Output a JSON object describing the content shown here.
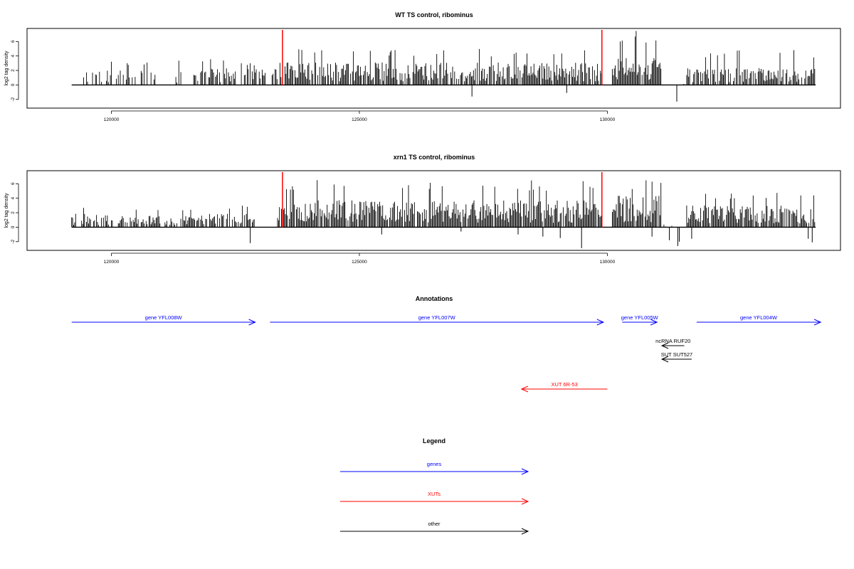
{
  "chart_data": [
    {
      "type": "bar",
      "title": "WT TS control, ribominus",
      "xlabel": "",
      "ylabel": "log2 tag density",
      "xlim": [
        118300,
        134700
      ],
      "ylim": [
        -3.2,
        7.8
      ],
      "x_ticks": [
        120000,
        125000,
        130000
      ],
      "x_tick_labels": [
        "120000",
        "125000",
        "130000"
      ],
      "y_ticks": [
        -2,
        0,
        2,
        4,
        6
      ],
      "y_tick_labels": [
        "-2",
        "0",
        "2",
        "4",
        "6"
      ],
      "baseline": {
        "x_start": 119200,
        "x_end": 134200,
        "y": 0
      },
      "markers": [
        {
          "x": 123450,
          "color": "#ff0000"
        },
        {
          "x": 129890,
          "color": "#ff0000"
        }
      ],
      "profile": {
        "bin_width": 20,
        "regions": [
          {
            "from": 119200,
            "to": 119400,
            "mean": 0.3,
            "max": 0.8,
            "density": 0.1
          },
          {
            "from": 119400,
            "to": 122000,
            "mean": 1.3,
            "max": 3.4,
            "density": 0.35
          },
          {
            "from": 122000,
            "to": 123400,
            "mean": 1.5,
            "max": 3.6,
            "density": 0.45
          },
          {
            "from": 123400,
            "to": 129900,
            "mean": 2.0,
            "max": 5.2,
            "density": 0.8
          },
          {
            "from": 129900,
            "to": 130100,
            "mean": 0.2,
            "max": 0.5,
            "density": 0.05
          },
          {
            "from": 130100,
            "to": 131100,
            "mean": 2.4,
            "max": 7.5,
            "density": 0.95
          },
          {
            "from": 131100,
            "to": 131600,
            "mean": 0.1,
            "max": 0.3,
            "density": 0.03
          },
          {
            "from": 131600,
            "to": 134200,
            "mean": 1.5,
            "max": 5.0,
            "density": 0.7
          }
        ],
        "negative_spikes": [
          {
            "x": 127270,
            "y": -1.6
          },
          {
            "x": 129180,
            "y": -1.1
          },
          {
            "x": 131400,
            "y": -2.3
          }
        ]
      }
    },
    {
      "type": "bar",
      "title": "xrn1 TS control, ribominus",
      "xlabel": "",
      "ylabel": "log2 tag density",
      "xlim": [
        118300,
        134700
      ],
      "ylim": [
        -3.2,
        7.8
      ],
      "x_ticks": [
        120000,
        125000,
        130000
      ],
      "x_tick_labels": [
        "120000",
        "125000",
        "130000"
      ],
      "y_ticks": [
        -2,
        0,
        2,
        4,
        6
      ],
      "y_tick_labels": [
        "-2",
        "0",
        "2",
        "4",
        "6"
      ],
      "baseline": {
        "x_start": 119200,
        "x_end": 134200,
        "y": 0
      },
      "markers": [
        {
          "x": 123450,
          "color": "#ff0000"
        },
        {
          "x": 129890,
          "color": "#ff0000"
        }
      ],
      "profile": {
        "bin_width": 20,
        "regions": [
          {
            "from": 119200,
            "to": 122900,
            "mean": 1.2,
            "max": 3.0,
            "density": 0.55
          },
          {
            "from": 122900,
            "to": 123350,
            "mean": 0.1,
            "max": 0.3,
            "density": 0.05
          },
          {
            "from": 123350,
            "to": 129900,
            "mean": 2.4,
            "max": 6.5,
            "density": 0.92
          },
          {
            "from": 129900,
            "to": 130100,
            "mean": 0.2,
            "max": 0.5,
            "density": 0.05
          },
          {
            "from": 130100,
            "to": 131100,
            "mean": 2.8,
            "max": 7.0,
            "density": 0.95
          },
          {
            "from": 131100,
            "to": 131600,
            "mean": 0.3,
            "max": 0.8,
            "density": 0.1
          },
          {
            "from": 131600,
            "to": 134200,
            "mean": 2.0,
            "max": 5.0,
            "density": 0.85
          }
        ],
        "negative_spikes": [
          {
            "x": 122800,
            "y": -2.2
          },
          {
            "x": 125450,
            "y": -1.0
          },
          {
            "x": 127050,
            "y": -0.6
          },
          {
            "x": 128200,
            "y": -1.0
          },
          {
            "x": 128700,
            "y": -1.3
          },
          {
            "x": 129050,
            "y": -1.5
          },
          {
            "x": 129480,
            "y": -2.9
          },
          {
            "x": 130900,
            "y": -1.3
          },
          {
            "x": 131250,
            "y": -1.8
          },
          {
            "x": 131420,
            "y": -2.6
          },
          {
            "x": 131450,
            "y": -2.0
          },
          {
            "x": 131700,
            "y": -1.6
          },
          {
            "x": 134050,
            "y": -1.6
          },
          {
            "x": 134130,
            "y": -2.1
          }
        ]
      }
    }
  ],
  "annotations": {
    "title": "Annotations",
    "features": [
      {
        "label": "gene YFL008W",
        "start": 119200,
        "end": 122900,
        "strand": "+",
        "color": "#0000ff",
        "row": 0
      },
      {
        "label": "gene YFL007W",
        "start": 123200,
        "end": 129920,
        "strand": "+",
        "color": "#0000ff",
        "row": 0
      },
      {
        "label": "gene YFL005W",
        "start": 130300,
        "end": 131000,
        "strand": "+",
        "color": "#0000ff",
        "row": 0
      },
      {
        "label": "gene YFL004W",
        "start": 131800,
        "end": 134300,
        "strand": "+",
        "color": "#0000ff",
        "row": 0
      },
      {
        "label": "ncRNA RUF20",
        "start": 131100,
        "end": 131550,
        "strand": "-",
        "color": "#000000",
        "row": 1
      },
      {
        "label": "SUT SUT527",
        "start": 131100,
        "end": 131700,
        "strand": "-",
        "color": "#000000",
        "row": 2
      },
      {
        "label": "XUT 6R-53",
        "start": 128270,
        "end": 130000,
        "strand": "-",
        "color": "#ff0000",
        "row": 3
      }
    ]
  },
  "legend": {
    "title": "Legend",
    "items": [
      {
        "label": "genes",
        "color": "#0000ff"
      },
      {
        "label": "XUTs",
        "color": "#ff0000"
      },
      {
        "label": "other",
        "color": "#000000"
      }
    ]
  }
}
